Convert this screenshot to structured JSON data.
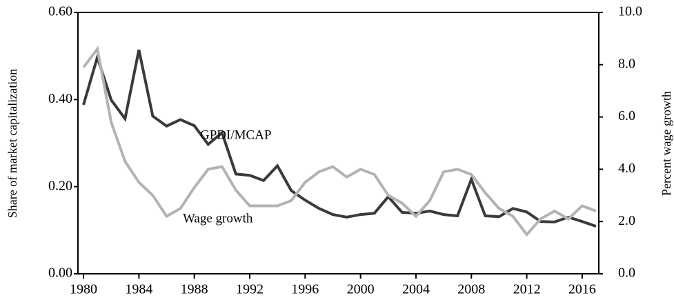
{
  "chart_data": {
    "type": "line",
    "y_label": "Share of market capitalization",
    "y2_label": "Percent wage growth",
    "x": [
      1980,
      1981,
      1982,
      1983,
      1984,
      1985,
      1986,
      1987,
      1988,
      1989,
      1990,
      1991,
      1992,
      1993,
      1994,
      1995,
      1996,
      1997,
      1998,
      1999,
      2000,
      2001,
      2002,
      2003,
      2004,
      2005,
      2006,
      2007,
      2008,
      2009,
      2010,
      2011,
      2012,
      2013,
      2014,
      2015,
      2016,
      2017
    ],
    "series": [
      {
        "name": "GPDI/MCAP",
        "color": "#3a3a3a",
        "axis": "y",
        "values": [
          0.388,
          0.497,
          0.399,
          0.356,
          0.514,
          0.362,
          0.339,
          0.354,
          0.34,
          0.297,
          0.324,
          0.229,
          0.226,
          0.214,
          0.248,
          0.191,
          0.169,
          0.15,
          0.136,
          0.13,
          0.136,
          0.139,
          0.177,
          0.141,
          0.139,
          0.144,
          0.136,
          0.133,
          0.217,
          0.133,
          0.131,
          0.15,
          0.142,
          0.12,
          0.119,
          0.13,
          0.12,
          0.109
        ]
      },
      {
        "name": "Wage growth",
        "color": "#b3b3b3",
        "axis": "y2",
        "values": [
          7.9,
          8.6,
          5.8,
          4.3,
          3.5,
          3.0,
          2.2,
          2.5,
          3.3,
          4.0,
          4.1,
          3.2,
          2.6,
          2.6,
          2.6,
          2.8,
          3.5,
          3.9,
          4.1,
          3.7,
          4.0,
          3.8,
          3.0,
          2.7,
          2.2,
          2.8,
          3.9,
          4.0,
          3.8,
          3.1,
          2.5,
          2.2,
          1.5,
          2.1,
          2.4,
          2.1,
          2.6,
          2.4
        ]
      }
    ],
    "xlim": [
      1979.6,
      2017.2
    ],
    "xticks": [
      1980,
      1984,
      1988,
      1992,
      1996,
      2000,
      2004,
      2008,
      2012,
      2016
    ],
    "ylim": [
      0,
      0.6
    ],
    "yticks": [
      {
        "value": 0,
        "label": "0.00"
      },
      {
        "value": 0.2,
        "label": "0.20"
      },
      {
        "value": 0.4,
        "label": "0.40"
      },
      {
        "value": 0.6,
        "label": "0.60"
      }
    ],
    "y2lim": [
      0,
      10
    ],
    "y2ticks": [
      {
        "value": 0,
        "label": "0.0"
      },
      {
        "value": 2,
        "label": "2.0"
      },
      {
        "value": 4,
        "label": "4.0"
      },
      {
        "value": 6,
        "label": "6.0"
      },
      {
        "value": 8,
        "label": "8.0"
      },
      {
        "value": 10,
        "label": "10.0"
      }
    ]
  }
}
